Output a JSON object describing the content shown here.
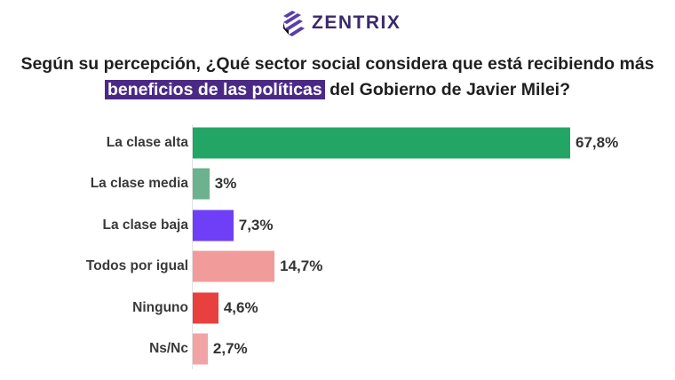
{
  "logo": {
    "text": "ZENTRIX"
  },
  "title": {
    "before": "Según su percepción, ¿Qué sector social considera que está recibiendo más",
    "highlight": "beneficios de las políticas",
    "after": " del Gobierno de Javier Milei?"
  },
  "chart_data": {
    "type": "bar",
    "orientation": "horizontal",
    "categories": [
      "La clase alta",
      "La clase media",
      "La clase baja",
      "Todos por igual",
      "Ninguno",
      "Ns/Nc"
    ],
    "values": [
      67.8,
      3,
      7.3,
      14.7,
      4.6,
      2.7
    ],
    "value_labels": [
      "67,8%",
      "3%",
      "7,3%",
      "14,7%",
      "4,6%",
      "2,7%"
    ],
    "colors": [
      "#23a566",
      "#6cb28f",
      "#6e3ff6",
      "#f19c9b",
      "#e8403f",
      "#f2a3a3"
    ],
    "unit": "%"
  }
}
